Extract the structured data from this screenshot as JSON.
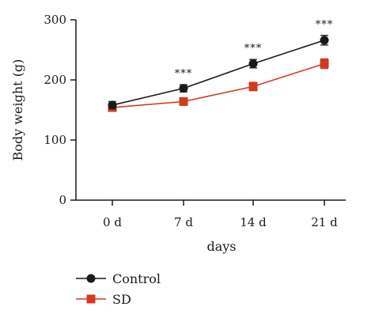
{
  "chart_data": {
    "type": "line",
    "title": "",
    "xlabel": "days",
    "ylabel": "Body weight (g)",
    "categories": [
      "0 d",
      "7 d",
      "14 d",
      "21 d"
    ],
    "ylim": [
      0,
      300
    ],
    "yticks": [
      "0",
      "100",
      "200",
      "300"
    ],
    "grid": false,
    "legend_position": "bottom-left",
    "series": [
      {
        "name": "Control",
        "color": "#1a1a1a",
        "marker": "circle",
        "values": [
          158,
          186,
          227,
          266
        ],
        "errors": [
          6,
          6,
          7,
          8
        ]
      },
      {
        "name": "SD",
        "color": "#d23a1e",
        "marker": "square",
        "values": [
          154,
          164,
          189,
          227
        ],
        "errors": [
          5,
          6,
          7,
          8
        ]
      }
    ],
    "annotations": [
      {
        "x": "7 d",
        "text": "***"
      },
      {
        "x": "14 d",
        "text": "***"
      },
      {
        "x": "21 d",
        "text": "***"
      }
    ]
  }
}
